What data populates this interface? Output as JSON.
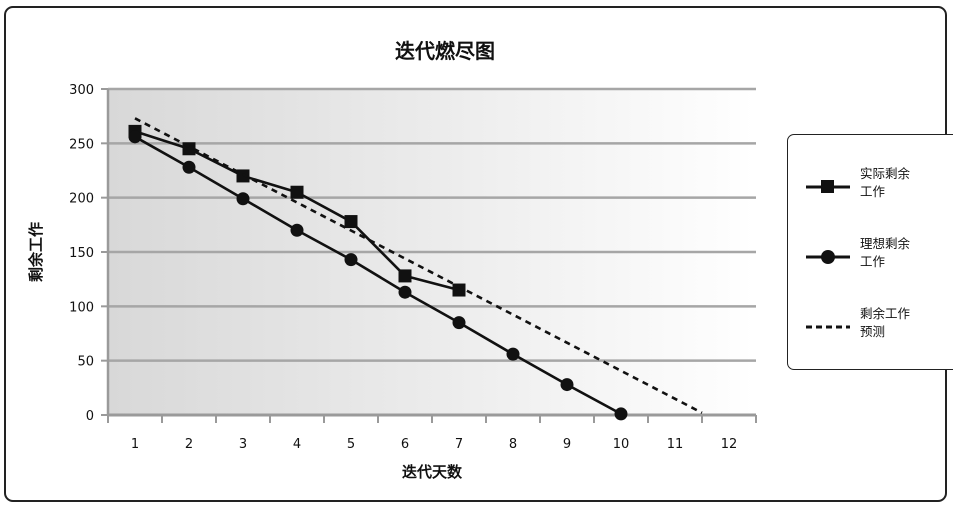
{
  "chart_data": {
    "type": "line",
    "title": "迭代燃尽图",
    "xlabel": "迭代天数",
    "ylabel": "剩余工作",
    "x_ticks": [
      "1",
      "2",
      "3",
      "4",
      "5",
      "6",
      "7",
      "8",
      "9",
      "10",
      "11",
      "12"
    ],
    "y_ticks": [
      "0",
      "50",
      "100",
      "150",
      "200",
      "250",
      "300"
    ],
    "ylim": [
      0,
      300
    ],
    "xlim": [
      0.5,
      12.5
    ],
    "grid": "horizontal",
    "legend_position": "right",
    "series": [
      {
        "name": "实际剩余工作",
        "marker": "square",
        "line_style": "solid",
        "color": "#111111",
        "x": [
          1,
          2,
          3,
          4,
          5,
          6,
          7
        ],
        "y": [
          261,
          245,
          220,
          205,
          178,
          128,
          115
        ]
      },
      {
        "name": "理想剩余工作",
        "marker": "circle",
        "line_style": "solid",
        "color": "#111111",
        "x": [
          1,
          2,
          3,
          4,
          5,
          6,
          7,
          8,
          9,
          10
        ],
        "y": [
          256,
          228,
          199,
          170,
          143,
          113,
          85,
          56,
          28,
          1
        ]
      },
      {
        "name": "剩余工作预测",
        "marker": "none",
        "line_style": "dashed",
        "color": "#111111",
        "x": [
          1,
          11.5
        ],
        "y": [
          273,
          2
        ]
      }
    ],
    "legend": [
      {
        "line1": "实际剩余",
        "line2": "工作"
      },
      {
        "line1": "理想剩余",
        "line2": "工作"
      },
      {
        "line1": "剩余工作",
        "line2": "预测"
      }
    ],
    "colors": {
      "plot_bg_left": "#d8d8d8",
      "plot_bg_right": "#ffffff",
      "gridline": "#a6a6a6",
      "axis": "#9a9a9a",
      "line": "#111111"
    }
  }
}
